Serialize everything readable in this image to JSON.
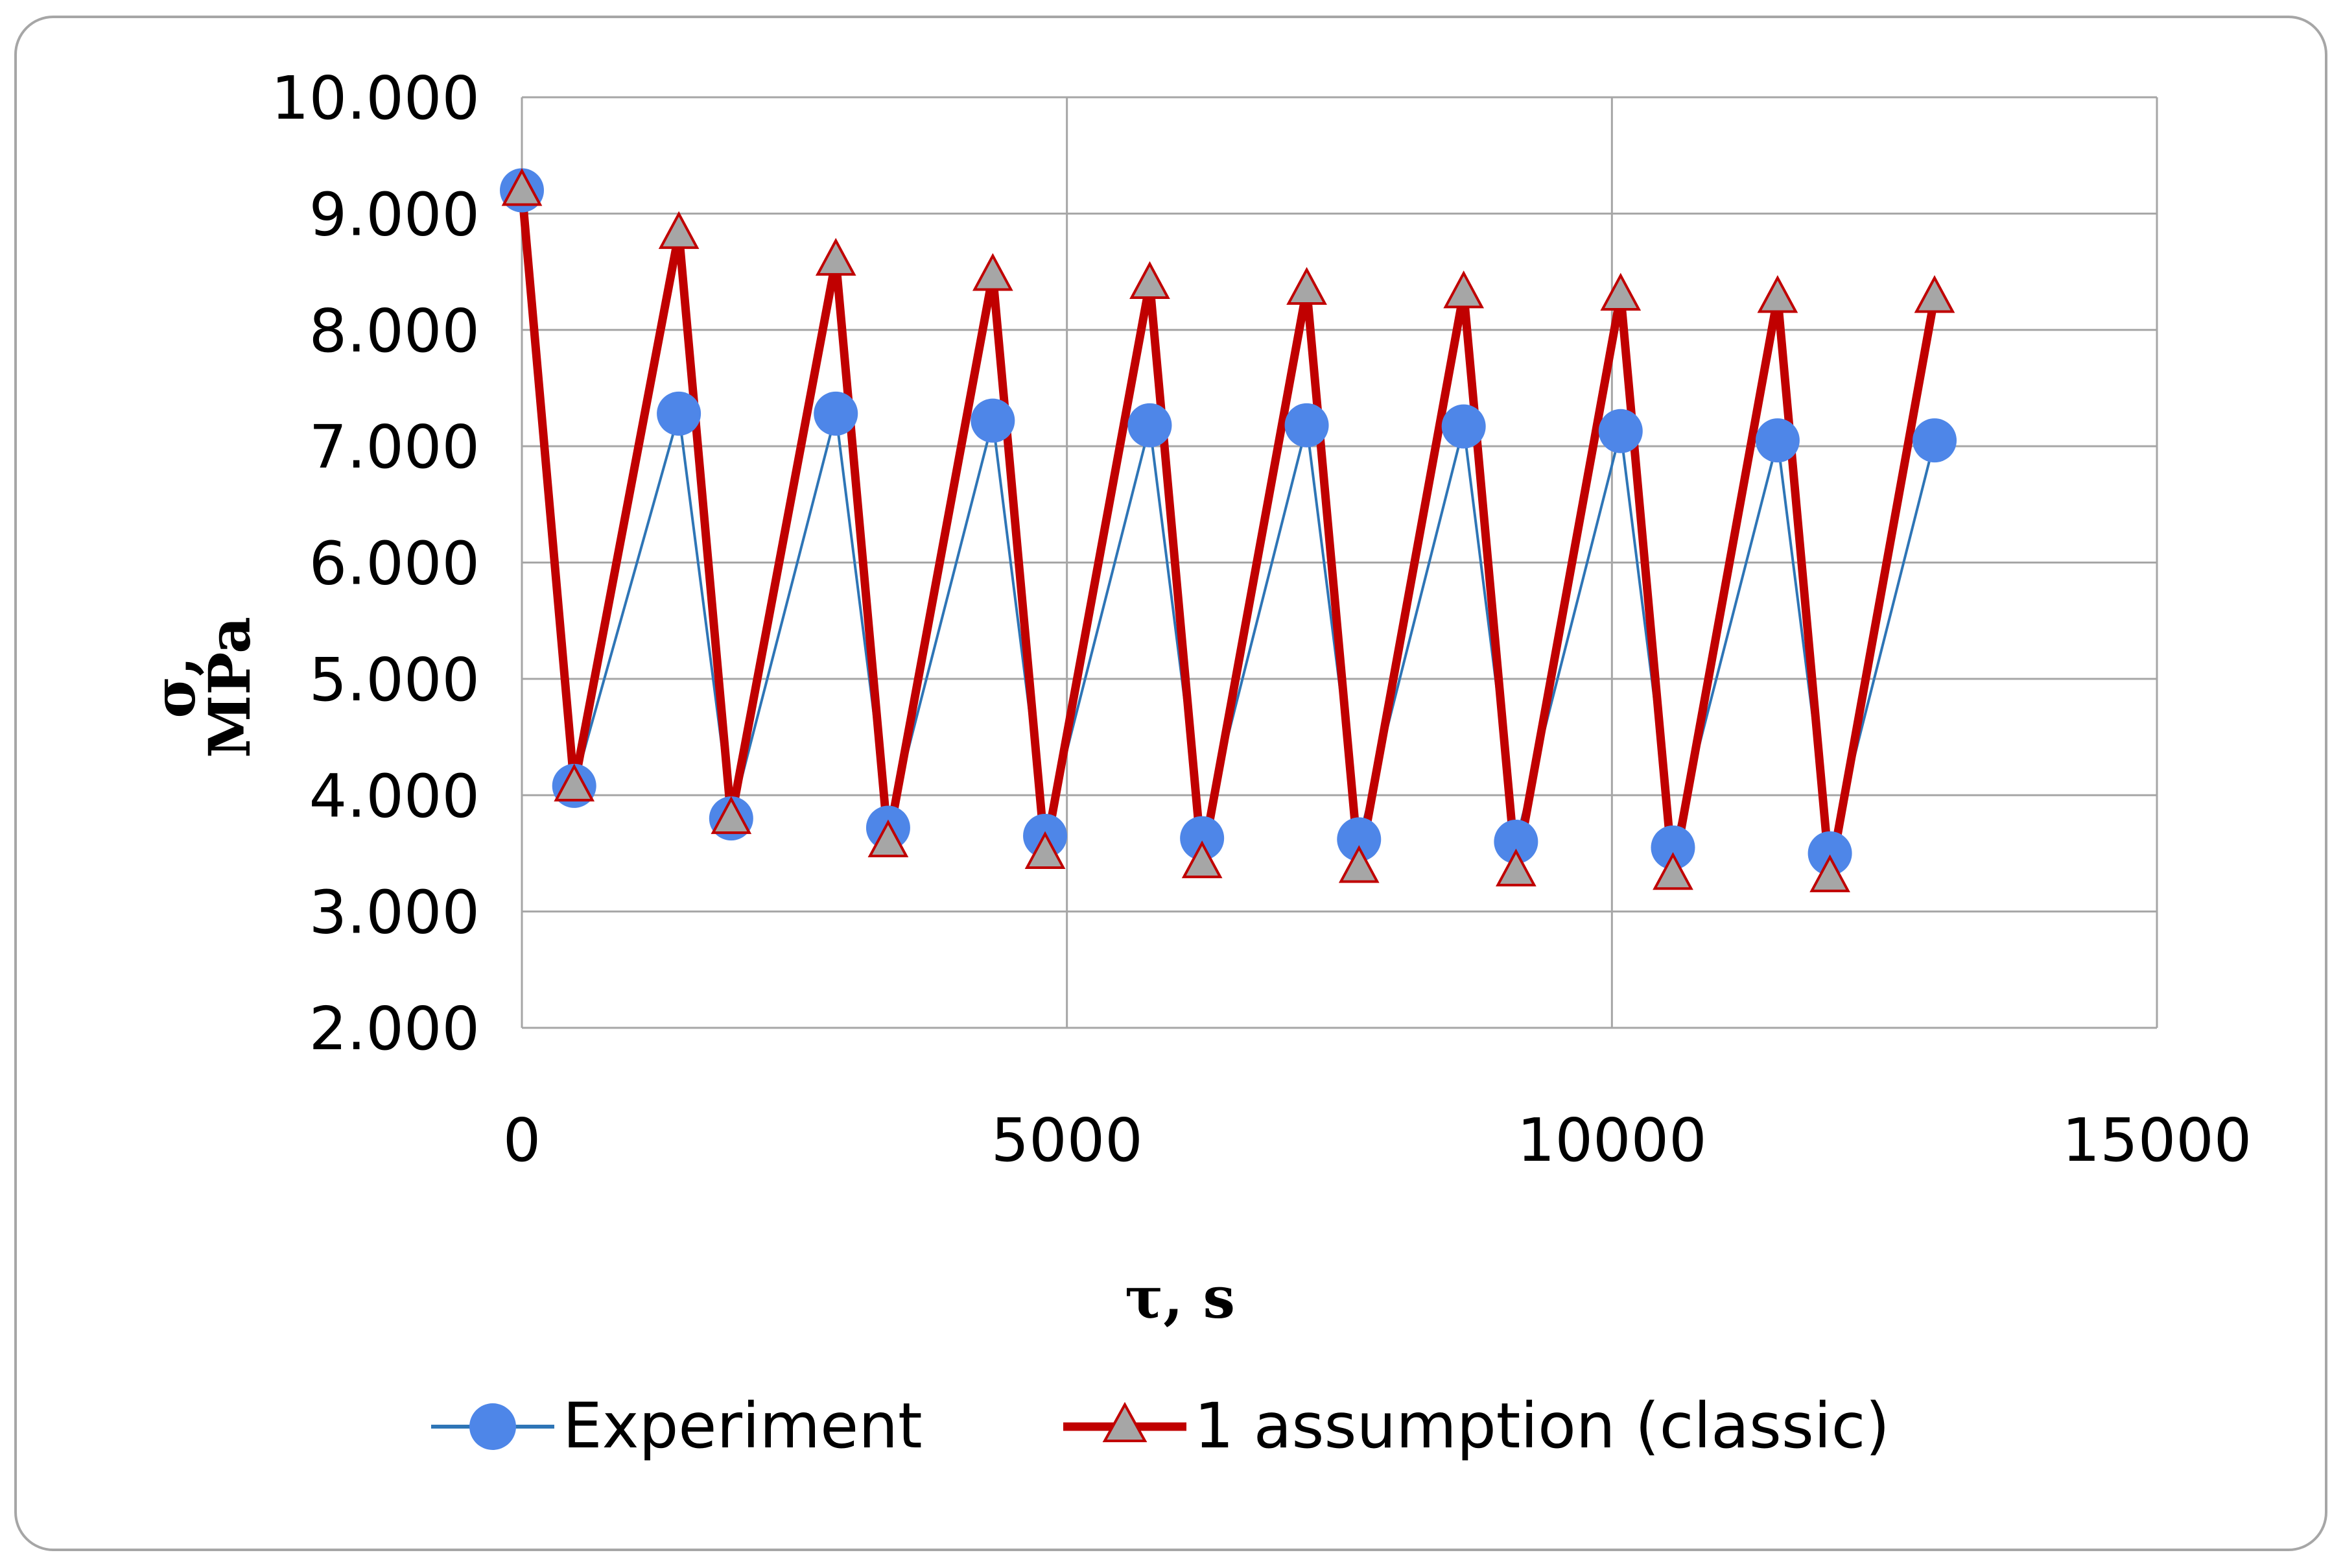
{
  "chart_data": {
    "type": "line",
    "title": "",
    "xlabel": "τ, s",
    "ylabel_line1": "σ,",
    "ylabel_line2": "MPa",
    "xlim": [
      0,
      15000
    ],
    "ylim": [
      2,
      10
    ],
    "x_ticks": [
      0,
      5000,
      10000,
      15000
    ],
    "x_tick_labels": [
      "0",
      "5000",
      "10000",
      "15000"
    ],
    "y_ticks": [
      2,
      3,
      4,
      5,
      6,
      7,
      8,
      9,
      10
    ],
    "y_tick_labels": [
      "2.000",
      "3.000",
      "4.000",
      "5.000",
      "6.000",
      "7.000",
      "8.000",
      "9.000",
      "10.000"
    ],
    "grid": true,
    "legend_position": "bottom",
    "series": [
      {
        "name": "Experiment",
        "color": "#4e86e8",
        "line_color": "#2e75b6",
        "marker": "circle",
        "points": [
          [
            0,
            9.2
          ],
          [
            480,
            4.08
          ],
          [
            1440,
            7.28
          ],
          [
            1920,
            3.8
          ],
          [
            2880,
            7.28
          ],
          [
            3360,
            3.72
          ],
          [
            4320,
            7.22
          ],
          [
            4800,
            3.65
          ],
          [
            5760,
            7.18
          ],
          [
            6240,
            3.63
          ],
          [
            7200,
            7.18
          ],
          [
            7680,
            3.62
          ],
          [
            8640,
            7.17
          ],
          [
            9120,
            3.6
          ],
          [
            10080,
            7.13
          ],
          [
            10560,
            3.55
          ],
          [
            11520,
            7.05
          ],
          [
            12000,
            3.5
          ],
          [
            12960,
            7.05
          ]
        ]
      },
      {
        "name": "1 assumption (classic)",
        "color": "#c00000",
        "marker_fill": "#a6a6a6",
        "marker": "triangle",
        "points": [
          [
            0,
            9.2
          ],
          [
            480,
            4.08
          ],
          [
            1440,
            8.83
          ],
          [
            1920,
            3.8
          ],
          [
            2880,
            8.6
          ],
          [
            3360,
            3.6
          ],
          [
            4320,
            8.47
          ],
          [
            4800,
            3.5
          ],
          [
            5760,
            8.4
          ],
          [
            6240,
            3.42
          ],
          [
            7200,
            8.35
          ],
          [
            7680,
            3.38
          ],
          [
            8640,
            8.32
          ],
          [
            9120,
            3.35
          ],
          [
            10080,
            8.3
          ],
          [
            10560,
            3.32
          ],
          [
            11520,
            8.28
          ],
          [
            12000,
            3.3
          ],
          [
            12960,
            8.28
          ]
        ]
      }
    ]
  }
}
